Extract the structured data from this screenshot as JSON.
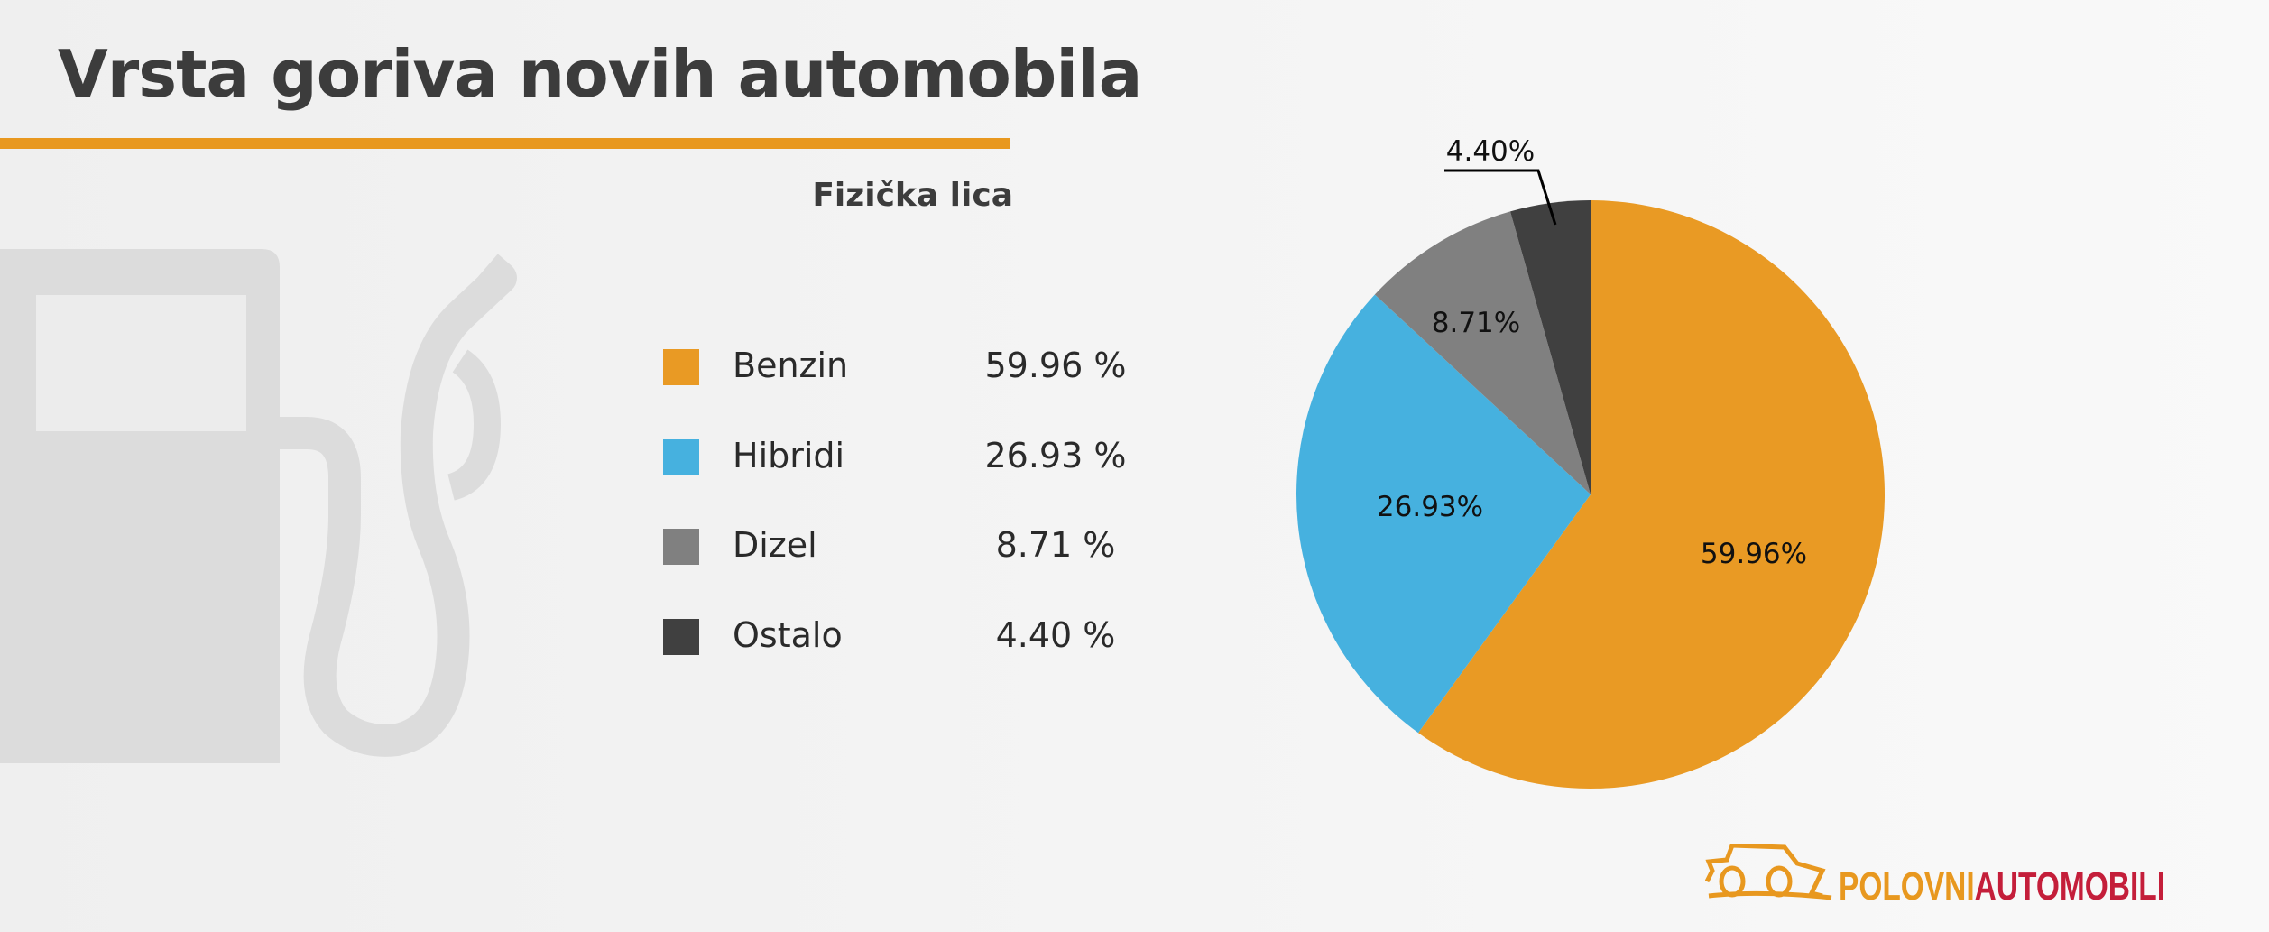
{
  "title": "Vrsta goriva novih automobila",
  "subtitle": "Fizička lica",
  "accent_color": "#e8981f",
  "legend": [
    {
      "label": "Benzin",
      "value": "59.96 %"
    },
    {
      "label": "Hibridi",
      "value": "26.93 %"
    },
    {
      "label": "Dizel",
      "value": "8.71 %"
    },
    {
      "label": "Ostalo",
      "value": "4.40 %"
    }
  ],
  "chart_data": {
    "type": "pie",
    "title": "Vrsta goriva novih automobila",
    "subtitle": "Fizička lica",
    "categories": [
      "Benzin",
      "Hibridi",
      "Dizel",
      "Ostalo"
    ],
    "values": [
      59.96,
      26.93,
      8.71,
      4.4
    ],
    "data_labels": [
      "59.96%",
      "26.93%",
      "8.71%",
      "4.40%"
    ],
    "colors": [
      "#e99a24",
      "#46b1df",
      "#808080",
      "#404040"
    ],
    "start_angle_deg": 0,
    "direction": "clockwise",
    "legend_position": "left"
  },
  "logo": {
    "part1": "POLOVNI",
    "part2": "AUTOMOBILI",
    "color1": "#e8981f",
    "color2": "#c41e3a"
  }
}
